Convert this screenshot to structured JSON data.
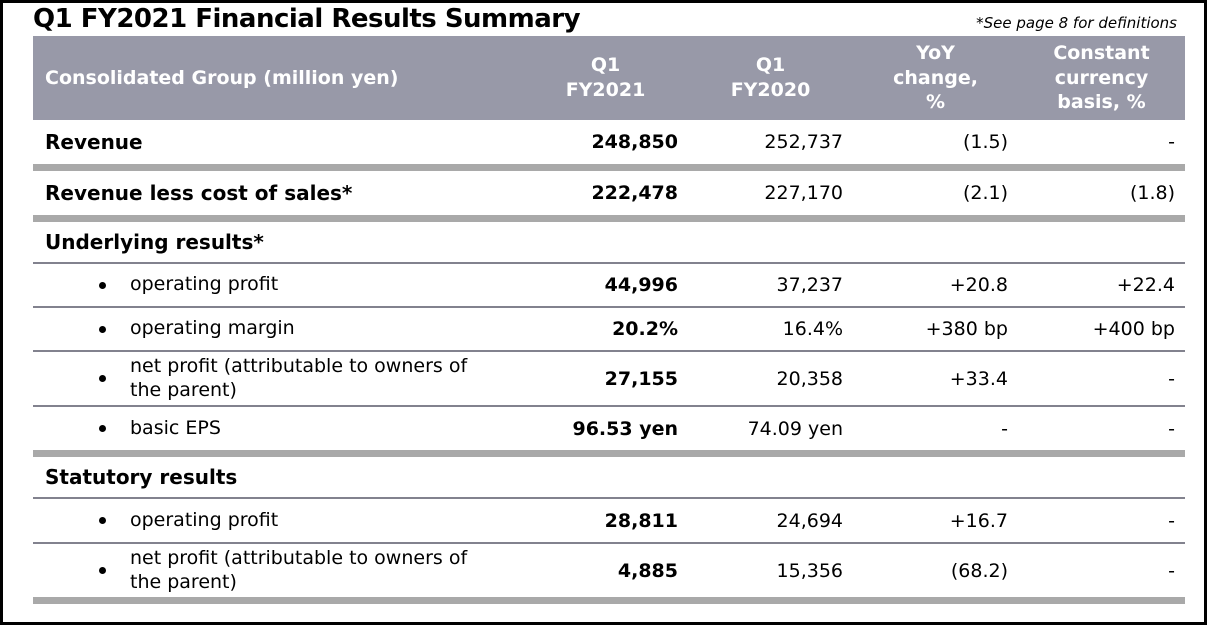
{
  "page": {
    "title": "Q1 FY2021 Financial Results Summary",
    "note": "*See page 8 for definitions"
  },
  "colors": {
    "header_background": "#9899A8",
    "header_text": "#FFFFFF",
    "separator_thick": "#A9A9A9",
    "separator_thin": "#82828E",
    "frame_border": "#000000",
    "body_text": "#000000"
  },
  "table": {
    "header": {
      "col_label": "Consolidated Group (million yen)",
      "col_2021": "Q1\nFY2021",
      "col_2020": "Q1\nFY2020",
      "col_yoy": "YoY\nchange,\n%",
      "col_cc": "Constant\ncurrency\nbasis, %"
    },
    "rows": [
      {
        "label": "Revenue",
        "v2021": "248,850",
        "v2020": "252,737",
        "yoy": "(1.5)",
        "cc": "-"
      },
      {
        "label": "Revenue less cost of sales*",
        "v2021": "222,478",
        "v2020": "227,170",
        "yoy": "(2.1)",
        "cc": "(1.8)"
      },
      {
        "label": "Underlying results*"
      },
      {
        "label": "operating profit",
        "v2021": "44,996",
        "v2020": "37,237",
        "yoy": "+20.8",
        "cc": "+22.4"
      },
      {
        "label": "operating margin",
        "v2021": "20.2%",
        "v2020": "16.4%",
        "yoy": "+380 bp",
        "cc": "+400 bp"
      },
      {
        "label": "net profit (attributable to owners of the parent)",
        "v2021": "27,155",
        "v2020": "20,358",
        "yoy": "+33.4",
        "cc": "-"
      },
      {
        "label": "basic EPS",
        "v2021": "96.53 yen",
        "v2020": "74.09 yen",
        "yoy": "-",
        "cc": "-"
      },
      {
        "label": "Statutory results"
      },
      {
        "label": "operating profit",
        "v2021": "28,811",
        "v2020": "24,694",
        "yoy": "+16.7",
        "cc": "-"
      },
      {
        "label": "net profit (attributable to owners of the parent)",
        "v2021": "4,885",
        "v2020": "15,356",
        "yoy": "(68.2)",
        "cc": "-"
      }
    ]
  }
}
